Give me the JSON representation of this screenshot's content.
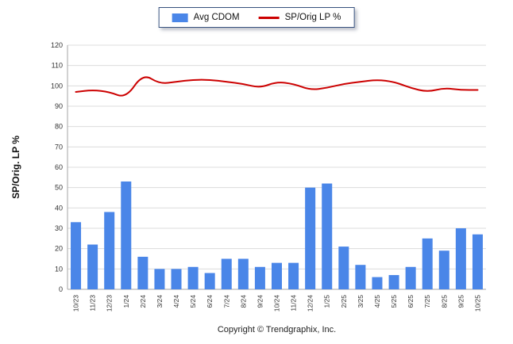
{
  "footer": {
    "copyright": "Copyright © Trendgraphix, Inc."
  },
  "chart_data": {
    "type": "bar+line",
    "categories": [
      "10/23",
      "11/23",
      "12/23",
      "1/24",
      "2/24",
      "3/24",
      "4/24",
      "5/24",
      "6/24",
      "7/24",
      "8/24",
      "9/24",
      "10/24",
      "11/24",
      "12/24",
      "1/25",
      "2/25",
      "3/25",
      "4/25",
      "5/25",
      "6/25",
      "7/25",
      "8/25",
      "9/25",
      "10/25"
    ],
    "series": [
      {
        "name": "Avg CDOM",
        "type": "bar",
        "color": "#4a86e8",
        "values": [
          33,
          22,
          38,
          53,
          16,
          10,
          10,
          11,
          8,
          15,
          15,
          11,
          13,
          13,
          50,
          52,
          21,
          12,
          6,
          7,
          11,
          25,
          19,
          30,
          27
        ]
      },
      {
        "name": "SP/Orig LP %",
        "type": "line",
        "color": "#cc0000",
        "values": [
          97,
          98,
          97,
          94,
          106,
          101,
          102,
          103,
          103,
          102,
          101,
          99,
          102,
          101,
          98,
          99,
          101,
          102,
          103,
          102,
          99,
          97,
          99,
          98,
          98
        ]
      }
    ],
    "title": "",
    "xlabel": "",
    "ylabel": "SP/Orig. LP %",
    "ylim": [
      0,
      120
    ],
    "ytick_step": 10,
    "grid": true,
    "legend_position": "top"
  }
}
